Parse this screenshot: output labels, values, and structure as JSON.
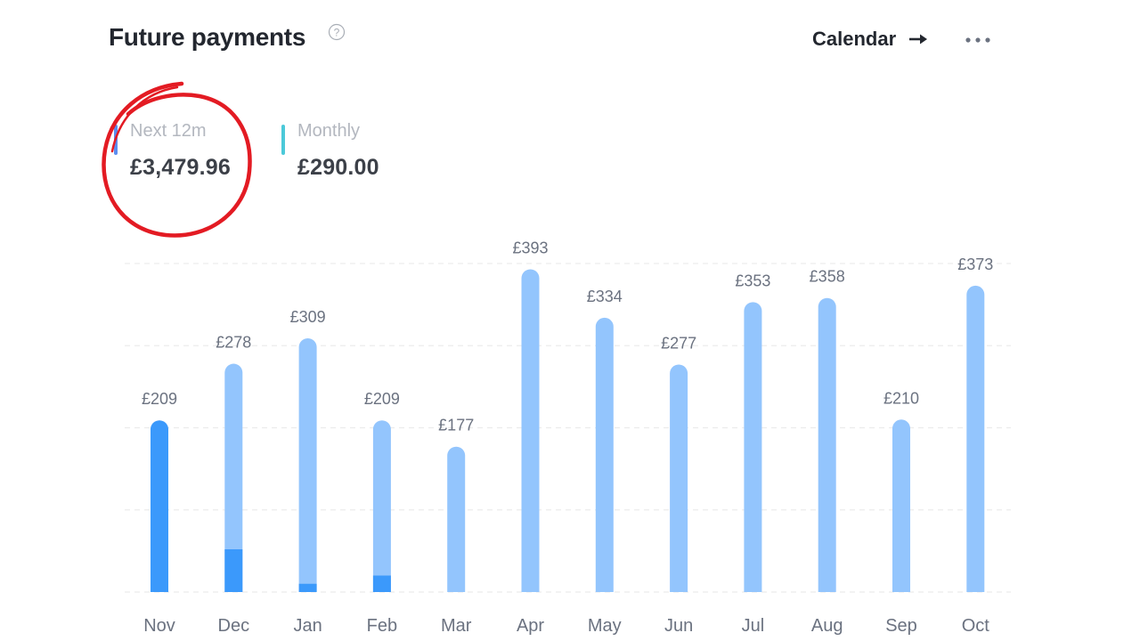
{
  "header": {
    "title": "Future payments",
    "help_icon": "question-circle-icon",
    "calendar_label": "Calendar",
    "calendar_icon": "arrow-right-icon",
    "more_icon": "more-horizontal-icon"
  },
  "stats": [
    {
      "label": "Next 12m",
      "value": "£3,479.96",
      "color": "#5b8def"
    },
    {
      "label": "Monthly",
      "value": "£290.00",
      "color": "#4cc9d9"
    }
  ],
  "colors": {
    "bar_light": "#93c5fd",
    "bar_dark": "#3b99fb",
    "annotation": "#e31b23",
    "grid": "#ececec",
    "tick_text": "#6b7280"
  },
  "chart_data": {
    "type": "bar",
    "categories": [
      "Nov",
      "Dec",
      "Jan",
      "Feb",
      "Mar",
      "Apr",
      "May",
      "Jun",
      "Jul",
      "Aug",
      "Sep",
      "Oct"
    ],
    "values": [
      209,
      278,
      309,
      209,
      177,
      393,
      334,
      277,
      353,
      358,
      210,
      373
    ],
    "value_labels": [
      "£209",
      "£278",
      "£309",
      "£209",
      "£177",
      "£393",
      "£334",
      "£277",
      "£353",
      "£358",
      "£210",
      "£373"
    ],
    "dark_portion": [
      209,
      52,
      10,
      20,
      0,
      0,
      0,
      0,
      0,
      0,
      0,
      0
    ],
    "ylim": [
      0,
      400
    ],
    "grid": true,
    "legend": "none"
  }
}
